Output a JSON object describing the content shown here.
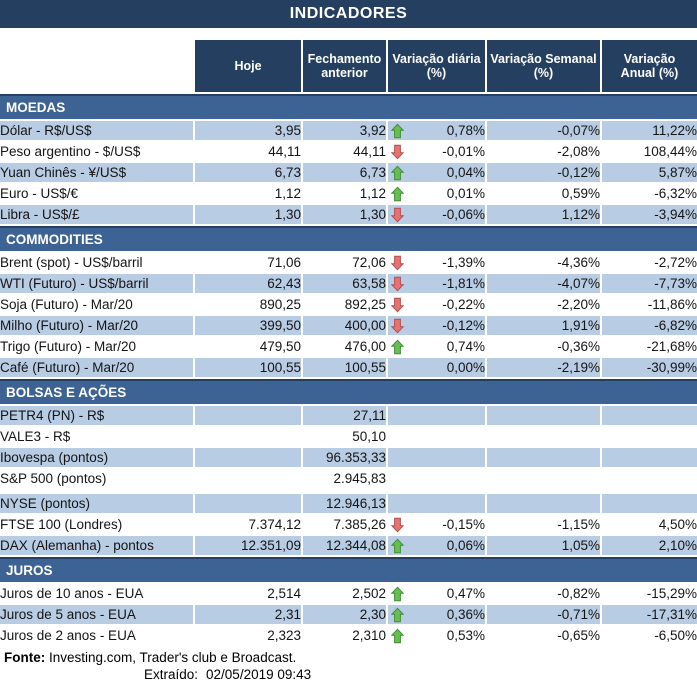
{
  "title": "INDICADORES",
  "columns": [
    "Hoje",
    "Fechamento\nanterior",
    "Variação diária\n(%)",
    "Variação Semanal\n(%)",
    "Variação\nAnual (%)"
  ],
  "sections": [
    {
      "name": "MOEDAS",
      "rows": [
        {
          "label": "Dólar - R$/US$",
          "hoje": "3,95",
          "fech": "3,92",
          "arrow": "up",
          "dia": "0,78%",
          "sem": "-0,07%",
          "anu": "11,22%"
        },
        {
          "label": "Peso argentino - $/US$",
          "hoje": "44,11",
          "fech": "44,11",
          "arrow": "down",
          "dia": "-0,01%",
          "sem": "-2,08%",
          "anu": "108,44%"
        },
        {
          "label": "Yuan Chinês - ¥/US$",
          "hoje": "6,73",
          "fech": "6,73",
          "arrow": "up",
          "dia": "0,04%",
          "sem": "-0,12%",
          "anu": "5,87%"
        },
        {
          "label": "Euro - US$/€",
          "hoje": "1,12",
          "fech": "1,12",
          "arrow": "up",
          "dia": "0,01%",
          "sem": "0,59%",
          "anu": "-6,32%"
        },
        {
          "label": "Libra - US$/£",
          "hoje": "1,30",
          "fech": "1,30",
          "arrow": "down",
          "dia": "-0,06%",
          "sem": "1,12%",
          "anu": "-3,94%"
        }
      ]
    },
    {
      "name": "COMMODITIES",
      "rows": [
        {
          "label": "Brent (spot) - US$/barril",
          "hoje": "71,06",
          "fech": "72,06",
          "arrow": "down",
          "dia": "-1,39%",
          "sem": "-4,36%",
          "anu": "-2,72%"
        },
        {
          "label": "WTI (Futuro) - US$/barril",
          "hoje": "62,43",
          "fech": "63,58",
          "arrow": "down",
          "dia": "-1,81%",
          "sem": "-4,07%",
          "anu": "-7,73%"
        },
        {
          "label": "Soja (Futuro) - Mar/20",
          "hoje": "890,25",
          "fech": "892,25",
          "arrow": "down",
          "dia": "-0,22%",
          "sem": "-2,20%",
          "anu": "-11,86%"
        },
        {
          "label": "Milho (Futuro) - Mar/20",
          "hoje": "399,50",
          "fech": "400,00",
          "arrow": "down",
          "dia": "-0,12%",
          "sem": "1,91%",
          "anu": "-6,82%"
        },
        {
          "label": "Trigo (Futuro) - Mar/20",
          "hoje": "479,50",
          "fech": "476,00",
          "arrow": "up",
          "dia": "0,74%",
          "sem": "-0,36%",
          "anu": "-21,68%"
        },
        {
          "label": "Café (Futuro) - Mar/20",
          "hoje": "100,55",
          "fech": "100,55",
          "arrow": null,
          "dia": "0,00%",
          "sem": "-2,19%",
          "anu": "-30,99%"
        }
      ]
    },
    {
      "name": "BOLSAS E AÇÕES",
      "rows": [
        {
          "label": "PETR4 (PN) - R$",
          "hoje": "",
          "fech": "27,11",
          "arrow": null,
          "dia": "",
          "sem": "",
          "anu": ""
        },
        {
          "label": "VALE3 - R$",
          "hoje": "",
          "fech": "50,10",
          "arrow": null,
          "dia": "",
          "sem": "",
          "anu": ""
        },
        {
          "label": "Ibovespa (pontos)",
          "hoje": "",
          "fech": "96.353,33",
          "arrow": null,
          "dia": "",
          "sem": "",
          "anu": ""
        },
        {
          "label": "S&P 500 (pontos)",
          "hoje": "",
          "fech": "2.945,83",
          "arrow": null,
          "dia": "",
          "sem": "",
          "anu": ""
        },
        {
          "label": "NYSE (pontos)",
          "hoje": "",
          "fech": "12.946,13",
          "arrow": null,
          "dia": "",
          "sem": "",
          "anu": "",
          "gap_above": true
        },
        {
          "label": "FTSE 100 (Londres)",
          "hoje": "7.374,12",
          "fech": "7.385,26",
          "arrow": "down",
          "dia": "-0,15%",
          "sem": "-1,15%",
          "anu": "4,50%"
        },
        {
          "label": "DAX (Alemanha) - pontos",
          "hoje": "12.351,09",
          "fech": "12.344,08",
          "arrow": "up",
          "dia": "0,06%",
          "sem": "1,05%",
          "anu": "2,10%"
        }
      ]
    },
    {
      "name": "JUROS",
      "rows": [
        {
          "label": "Juros de 10 anos - EUA",
          "hoje": "2,514",
          "fech": "2,502",
          "arrow": "up",
          "dia": "0,47%",
          "sem": "-0,82%",
          "anu": "-15,29%"
        },
        {
          "label": "Juros de 5 anos - EUA",
          "hoje": "2,31",
          "fech": "2,30",
          "arrow": "up",
          "dia": "0,36%",
          "sem": "-0,71%",
          "anu": "-17,31%"
        },
        {
          "label": "Juros de 2 anos - EUA",
          "hoje": "2,323",
          "fech": "2,310",
          "arrow": "up",
          "dia": "0,53%",
          "sem": "-0,65%",
          "anu": "-6,50%"
        }
      ]
    }
  ],
  "footer": {
    "fonte_label": "Fonte:",
    "fonte_text": "Investing.com, Trader's club e Broadcast.",
    "extraido_label": "Extraído:",
    "extraido_value": "02/05/2019 09:43"
  },
  "colors": {
    "navy": "#243F5F",
    "band": "#3C6394",
    "shade": "#B8CCE4",
    "arrow_up_fill": "#67BE53",
    "arrow_up_stroke": "#3F8F35",
    "arrow_down_fill": "#E87272",
    "arrow_down_stroke": "#B05050"
  }
}
